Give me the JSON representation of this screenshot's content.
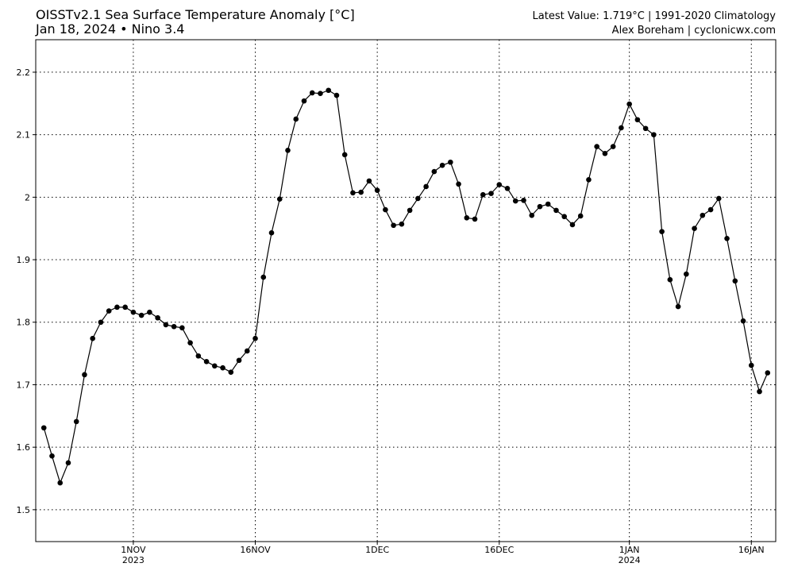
{
  "chart_data": {
    "type": "line",
    "title": "OISSTv2.1 Sea Surface Temperature Anomaly [°C]",
    "subtitle": "Jan 18, 2024 • Nino 3.4",
    "annotations": [
      "Latest Value: 1.719°C | 1991-2020 Climatology",
      "Alex Boreham | cyclonicwx.com"
    ],
    "x_start": "2023-10-21",
    "x_step_days": 1,
    "series": [
      {
        "color": "#000000",
        "values": [
          1.631,
          1.586,
          1.543,
          1.575,
          1.641,
          1.716,
          1.774,
          1.8,
          1.818,
          1.824,
          1.824,
          1.816,
          1.811,
          1.816,
          1.807,
          1.796,
          1.793,
          1.791,
          1.767,
          1.746,
          1.737,
          1.73,
          1.727,
          1.72,
          1.739,
          1.754,
          1.774,
          1.872,
          1.943,
          1.997,
          2.075,
          2.125,
          2.154,
          2.167,
          2.166,
          2.171,
          2.163,
          2.068,
          2.007,
          2.008,
          2.026,
          2.011,
          1.98,
          1.955,
          1.957,
          1.979,
          1.998,
          2.017,
          2.041,
          2.051,
          2.056,
          2.021,
          1.967,
          1.965,
          2.004,
          2.006,
          2.02,
          2.014,
          1.994,
          1.995,
          1.971,
          1.985,
          1.989,
          1.979,
          1.969,
          1.956,
          1.97,
          2.028,
          2.081,
          2.07,
          2.081,
          2.111,
          2.149,
          2.124,
          2.11,
          2.1,
          1.945,
          1.868,
          1.825,
          1.877,
          1.95,
          1.971,
          1.98,
          1.998,
          1.934,
          1.866,
          1.802,
          1.731,
          1.689,
          1.719
        ]
      }
    ],
    "xlim": [
      "2023-10-20",
      "2024-01-19"
    ],
    "xticks": [
      {
        "value": "2023-11-01",
        "label": "1NOV",
        "sublabel": "2023"
      },
      {
        "value": "2023-11-16",
        "label": "16NOV"
      },
      {
        "value": "2023-12-01",
        "label": "1DEC"
      },
      {
        "value": "2023-12-16",
        "label": "16DEC"
      },
      {
        "value": "2024-01-01",
        "label": "1JAN",
        "sublabel": "2024"
      },
      {
        "value": "2024-01-16",
        "label": "16JAN"
      }
    ],
    "ylim": [
      1.449,
      2.252
    ],
    "yticks": [
      1.5,
      1.6,
      1.7,
      1.8,
      1.9,
      2,
      2.1,
      2.2
    ],
    "grid": true
  }
}
